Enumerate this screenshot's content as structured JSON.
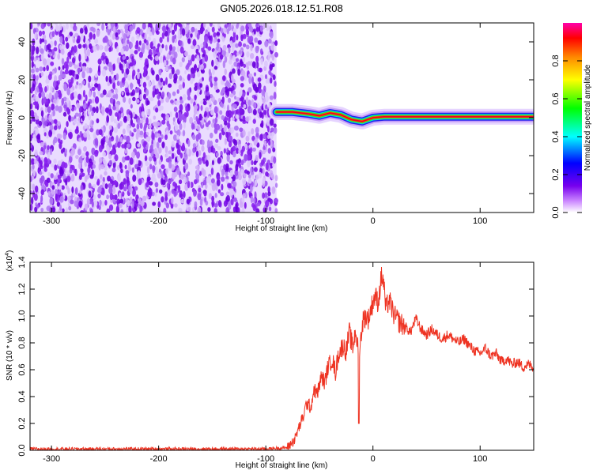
{
  "title": "GN05.2026.018.12.51.R08",
  "chart_data": [
    {
      "type": "heatmap",
      "xlabel": "Height of straight line (km)",
      "ylabel": "Frequency (Hz)",
      "xlim": [
        -320,
        150
      ],
      "ylim": [
        -50,
        50
      ],
      "xticks": [
        "-300",
        "-200",
        "-100",
        "0",
        "100"
      ],
      "yticks": [
        "40",
        "20",
        "0",
        "-20",
        "-40"
      ],
      "colorbar": {
        "label": "Normalized spectral amplitude",
        "ticks": [
          "0.0",
          "0.2",
          "0.4",
          "0.6",
          "0.8"
        ],
        "range": [
          0,
          1
        ],
        "colors": [
          "#ffffff",
          "#cc88ff",
          "#7700ee",
          "#0000ff",
          "#00ffff",
          "#00ff00",
          "#ffff00",
          "#ff8800",
          "#ff0000",
          "#ff00aa"
        ]
      },
      "regions": [
        {
          "name": "noise",
          "x": [
            -320,
            -90
          ],
          "freq": [
            -50,
            50
          ],
          "amplitude": "low (0.0–0.2)"
        },
        {
          "name": "signal",
          "x": [
            -90,
            150
          ],
          "freq_center": [
            [
              -90,
              3
            ],
            [
              -75,
              3
            ],
            [
              -60,
              2
            ],
            [
              -50,
              1
            ],
            [
              -40,
              2.5
            ],
            [
              -30,
              1.5
            ],
            [
              -20,
              -1
            ],
            [
              -10,
              -2
            ],
            [
              0,
              0
            ],
            [
              10,
              0.5
            ],
            [
              150,
              0.5
            ]
          ]
        }
      ]
    },
    {
      "type": "line",
      "xlabel": "Height of straight line (km)",
      "ylabel": "SNR (10 * v/v)",
      "multiplier": "(x10",
      "multiplier_exp": "4",
      "xlim": [
        -320,
        150
      ],
      "ylim": [
        0,
        1.4
      ],
      "xticks": [
        "-300",
        "-200",
        "-100",
        "0",
        "100"
      ],
      "yticks": [
        "0.0",
        "0.2",
        "0.4",
        "0.6",
        "0.8",
        "1.0",
        "1.2",
        "1.4"
      ],
      "series": [
        {
          "color": "#ee3322",
          "x": [
            -320,
            -100,
            -80,
            -73,
            -70,
            -65,
            -62,
            -58,
            -55,
            -52,
            -48,
            -45,
            -42,
            -38,
            -35,
            -32,
            -28,
            -25,
            -22,
            -19,
            -16,
            -13,
            -10,
            -7,
            -4,
            -1,
            2,
            5,
            8,
            10,
            12,
            15,
            20,
            25,
            30,
            35,
            40,
            45,
            50,
            55,
            60,
            65,
            70,
            75,
            80,
            85,
            90,
            95,
            100,
            105,
            110,
            115,
            120,
            125,
            130,
            135,
            140,
            145,
            150
          ],
          "y": [
            0.01,
            0.01,
            0.02,
            0.08,
            0.15,
            0.25,
            0.35,
            0.32,
            0.45,
            0.42,
            0.55,
            0.5,
            0.62,
            0.68,
            0.58,
            0.72,
            0.78,
            0.74,
            0.88,
            0.76,
            0.9,
            0.66,
            0.95,
            1.0,
            0.98,
            1.08,
            1.15,
            1.1,
            1.3,
            1.25,
            1.05,
            1.12,
            1.0,
            0.95,
            0.92,
            0.88,
            0.98,
            0.9,
            0.86,
            0.9,
            0.86,
            0.83,
            0.86,
            0.83,
            0.8,
            0.83,
            0.78,
            0.74,
            0.72,
            0.76,
            0.7,
            0.72,
            0.66,
            0.68,
            0.64,
            0.66,
            0.62,
            0.64,
            0.62
          ]
        }
      ]
    }
  ]
}
